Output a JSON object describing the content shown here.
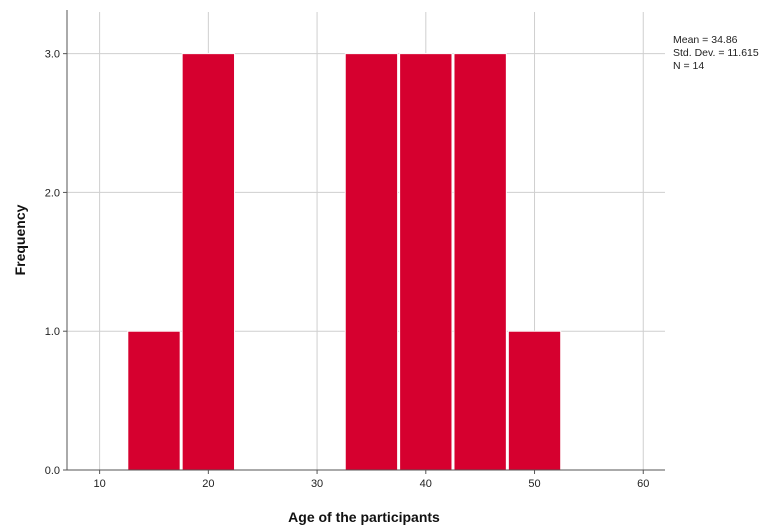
{
  "chart_data": {
    "type": "bar",
    "subtype": "histogram",
    "bins": [
      {
        "start": 12.5,
        "end": 17.5,
        "value": 1
      },
      {
        "start": 17.5,
        "end": 22.5,
        "value": 3
      },
      {
        "start": 22.5,
        "end": 27.5,
        "value": 0
      },
      {
        "start": 27.5,
        "end": 32.5,
        "value": 0
      },
      {
        "start": 32.5,
        "end": 37.5,
        "value": 3
      },
      {
        "start": 37.5,
        "end": 42.5,
        "value": 3
      },
      {
        "start": 42.5,
        "end": 47.5,
        "value": 3
      },
      {
        "start": 47.5,
        "end": 52.5,
        "value": 1
      }
    ],
    "xlim": [
      7,
      62
    ],
    "ylim": [
      0,
      3.3
    ],
    "xticks": [
      10,
      20,
      30,
      40,
      50,
      60
    ],
    "xtick_labels": [
      "10",
      "20",
      "30",
      "40",
      "50",
      "60"
    ],
    "yticks": [
      0,
      1,
      2,
      3
    ],
    "ytick_labels": [
      "0.0",
      "1.0",
      "2.0",
      "3.0"
    ],
    "xlabel": "Age of the participants",
    "ylabel": "Frequency",
    "grid": true,
    "bar_color": "#d6002f",
    "stats": {
      "mean": "Mean = 34.86",
      "std": "Std. Dev. = 11.615",
      "n": "N = 14"
    }
  }
}
